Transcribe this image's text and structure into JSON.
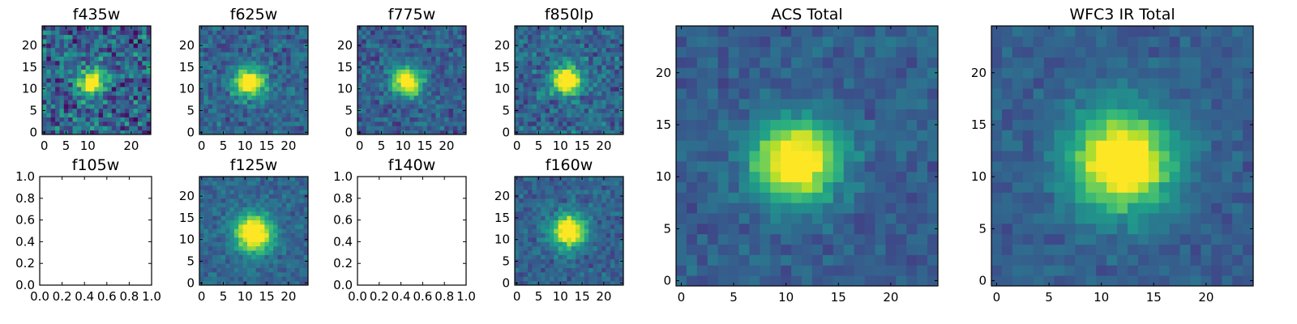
{
  "chart_data": [
    {
      "type": "heatmap",
      "title": "f435w",
      "xticks": [
        "0",
        "5",
        "10",
        "20"
      ],
      "yticks": [
        "0",
        "5",
        "10",
        "15",
        "20"
      ],
      "xlim": [
        -0.5,
        24.5
      ],
      "ylim": [
        -0.5,
        24.5
      ],
      "source": {
        "peak_x": 11,
        "peak_y": 11.5,
        "sigma": 2.0,
        "elong": 1.0,
        "noise": 0.35,
        "background": 0.32
      }
    },
    {
      "type": "heatmap",
      "title": "f625w",
      "xticks": [
        "0",
        "5",
        "10",
        "15",
        "20"
      ],
      "yticks": [
        "0",
        "5",
        "10",
        "15",
        "20"
      ],
      "xlim": [
        -0.5,
        24.5
      ],
      "ylim": [
        -0.5,
        24.5
      ],
      "source": {
        "peak_x": 11,
        "peak_y": 11.5,
        "sigma": 2.2,
        "elong": 1.2,
        "noise": 0.2,
        "background": 0.33
      }
    },
    {
      "type": "heatmap",
      "title": "f775w",
      "xticks": [
        "0",
        "5",
        "10",
        "15",
        "20"
      ],
      "yticks": [
        "0",
        "5",
        "10",
        "15",
        "20"
      ],
      "xlim": [
        -0.5,
        24.5
      ],
      "ylim": [
        -0.5,
        24.5
      ],
      "source": {
        "peak_x": 11,
        "peak_y": 11.5,
        "sigma": 2.2,
        "elong": 1.2,
        "noise": 0.2,
        "background": 0.3
      }
    },
    {
      "type": "heatmap",
      "title": "f850lp",
      "xticks": [
        "0",
        "5",
        "10",
        "15",
        "20"
      ],
      "yticks": [
        "0",
        "5",
        "10",
        "15",
        "20"
      ],
      "xlim": [
        -0.5,
        24.5
      ],
      "ylim": [
        -0.5,
        24.5
      ],
      "source": {
        "peak_x": 11.5,
        "peak_y": 12,
        "sigma": 2.3,
        "elong": 1.1,
        "noise": 0.22,
        "background": 0.33
      }
    },
    {
      "type": "empty",
      "title": "f105w",
      "xticks": [
        "0.0",
        "0.2",
        "0.4",
        "0.6",
        "0.8",
        "1.0"
      ],
      "yticks": [
        "0.0",
        "0.2",
        "0.4",
        "0.6",
        "0.8",
        "1.0"
      ],
      "xlim": [
        0,
        1
      ],
      "ylim": [
        0,
        1
      ]
    },
    {
      "type": "heatmap",
      "title": "f125w",
      "xticks": [
        "0",
        "5",
        "10",
        "15",
        "20"
      ],
      "yticks": [
        "0",
        "5",
        "10",
        "15",
        "20"
      ],
      "xlim": [
        -0.5,
        24.5
      ],
      "ylim": [
        -0.5,
        24.5
      ],
      "source": {
        "peak_x": 12,
        "peak_y": 11.5,
        "sigma": 3.0,
        "elong": 1.0,
        "noise": 0.14,
        "background": 0.33
      }
    },
    {
      "type": "empty",
      "title": "f140w",
      "xticks": [
        "0.0",
        "0.2",
        "0.4",
        "0.6",
        "0.8",
        "1.0"
      ],
      "yticks": [
        "0.0",
        "0.2",
        "0.4",
        "0.6",
        "0.8",
        "1.0"
      ],
      "xlim": [
        0,
        1
      ],
      "ylim": [
        0,
        1
      ]
    },
    {
      "type": "heatmap",
      "title": "f160w",
      "xticks": [
        "0",
        "5",
        "10",
        "15",
        "20"
      ],
      "yticks": [
        "0",
        "5",
        "10",
        "15",
        "20"
      ],
      "xlim": [
        -0.5,
        24.5
      ],
      "ylim": [
        -0.5,
        24.5
      ],
      "source": {
        "peak_x": 12,
        "peak_y": 12,
        "sigma": 2.6,
        "elong": 1.0,
        "noise": 0.16,
        "background": 0.32
      }
    },
    {
      "type": "heatmap",
      "title": "ACS Total",
      "xticks": [
        "0",
        "5",
        "10",
        "15",
        "20"
      ],
      "yticks": [
        "0",
        "5",
        "10",
        "15",
        "20"
      ],
      "xlim": [
        -0.5,
        24.5
      ],
      "ylim": [
        -0.5,
        24.5
      ],
      "source": {
        "peak_x": 11,
        "peak_y": 11.5,
        "sigma": 2.6,
        "elong": 1.2,
        "noise": 0.12,
        "background": 0.3
      }
    },
    {
      "type": "heatmap",
      "title": "WFC3 IR Total",
      "xticks": [
        "0",
        "5",
        "10",
        "15",
        "20"
      ],
      "yticks": [
        "0",
        "5",
        "10",
        "15",
        "20"
      ],
      "xlim": [
        -0.5,
        24.5
      ],
      "ylim": [
        -0.5,
        24.5
      ],
      "source": {
        "peak_x": 12,
        "peak_y": 11.5,
        "sigma": 3.3,
        "elong": 1.0,
        "noise": 0.1,
        "background": 0.3
      }
    }
  ],
  "colormap": [
    "#440154",
    "#482878",
    "#3e4989",
    "#31688e",
    "#26828e",
    "#1f9e89",
    "#35b779",
    "#6ece58",
    "#b5de2b",
    "#fde725"
  ]
}
